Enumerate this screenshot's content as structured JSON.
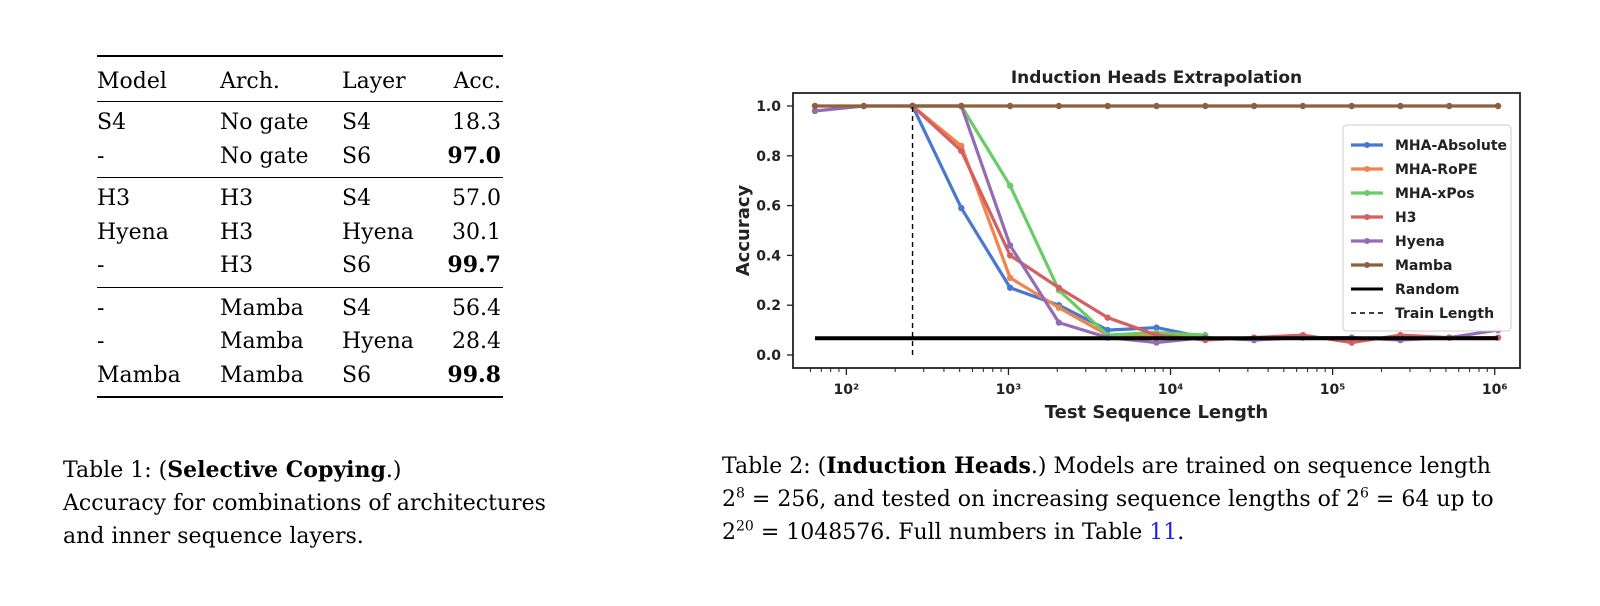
{
  "table1": {
    "headers": [
      "Model",
      "Arch.",
      "Layer",
      "Acc."
    ],
    "groups": [
      [
        {
          "model": "S4",
          "arch": "No gate",
          "layer": "S4",
          "acc": "18.3",
          "bold": false
        },
        {
          "model": "-",
          "arch": "No gate",
          "layer": "S6",
          "acc": "97.0",
          "bold": true
        }
      ],
      [
        {
          "model": "H3",
          "arch": "H3",
          "layer": "S4",
          "acc": "57.0",
          "bold": false
        },
        {
          "model": "Hyena",
          "arch": "H3",
          "layer": "Hyena",
          "acc": "30.1",
          "bold": false
        },
        {
          "model": "-",
          "arch": "H3",
          "layer": "S6",
          "acc": "99.7",
          "bold": true
        }
      ],
      [
        {
          "model": "-",
          "arch": "Mamba",
          "layer": "S4",
          "acc": "56.4",
          "bold": false
        },
        {
          "model": "-",
          "arch": "Mamba",
          "layer": "Hyena",
          "acc": "28.4",
          "bold": false
        },
        {
          "model": "Mamba",
          "arch": "Mamba",
          "layer": "S6",
          "acc": "99.8",
          "bold": true
        }
      ]
    ],
    "caption": {
      "label": "Table 1: (",
      "bold": "Selective Copying",
      "after": ".)",
      "line2": "Accuracy for combinations of architectures",
      "line3": "and inner sequence layers."
    }
  },
  "chart_data": {
    "type": "line",
    "title": "Induction Heads Extrapolation",
    "xlabel": "Test Sequence Length",
    "ylabel": "Accuracy",
    "xscale": "log2",
    "xlim": [
      64,
      1048576
    ],
    "ylim": [
      0,
      1.0
    ],
    "x_tick_labels": [
      "10²",
      "10³",
      "10⁴",
      "10⁵",
      "10⁶"
    ],
    "x_tick_values": [
      100,
      1000,
      10000,
      100000,
      1000000
    ],
    "y_tick_labels": [
      "0.0",
      "0.2",
      "0.4",
      "0.6",
      "0.8",
      "1.0"
    ],
    "y_tick_values": [
      0,
      0.2,
      0.4,
      0.6,
      0.8,
      1.0
    ],
    "grid": false,
    "legend_position": "right",
    "series": [
      {
        "name": "MHA-Absolute",
        "color": "#4878d0",
        "x": [
          256,
          512,
          1024,
          2048,
          4096,
          8192,
          16384
        ],
        "y": [
          1.0,
          0.59,
          0.27,
          0.2,
          0.1,
          0.11,
          0.07
        ]
      },
      {
        "name": "MHA-RoPE",
        "color": "#ee854a",
        "x": [
          256,
          512,
          1024,
          2048,
          4096,
          8192,
          16384
        ],
        "y": [
          1.0,
          0.84,
          0.31,
          0.19,
          0.08,
          0.08,
          0.07
        ]
      },
      {
        "name": "MHA-xPos",
        "color": "#6acc64",
        "x": [
          256,
          512,
          1024,
          2048,
          4096,
          8192,
          16384
        ],
        "y": [
          1.0,
          1.0,
          0.68,
          0.26,
          0.08,
          0.09,
          0.08
        ]
      },
      {
        "name": "H3",
        "color": "#d65f5f",
        "x": [
          256,
          512,
          1024,
          2048,
          4096,
          8192,
          16384,
          32768,
          65536,
          131072,
          262144,
          524288,
          1048576
        ],
        "y": [
          1.0,
          0.82,
          0.4,
          0.27,
          0.15,
          0.08,
          0.06,
          0.07,
          0.08,
          0.05,
          0.08,
          0.07,
          0.07
        ]
      },
      {
        "name": "Hyena",
        "color": "#956cb4",
        "x": [
          64,
          128,
          256,
          512,
          1024,
          2048,
          4096,
          8192,
          16384,
          32768,
          65536,
          131072,
          262144,
          524288,
          1048576
        ],
        "y": [
          0.98,
          1.0,
          1.0,
          1.0,
          0.44,
          0.13,
          0.07,
          0.05,
          0.07,
          0.06,
          0.07,
          0.07,
          0.06,
          0.07,
          0.1
        ]
      },
      {
        "name": "Mamba",
        "color": "#8c613c",
        "x": [
          64,
          128,
          256,
          512,
          1024,
          2048,
          4096,
          8192,
          16384,
          32768,
          65536,
          131072,
          262144,
          524288,
          1048576
        ],
        "y": [
          1.0,
          1.0,
          1.0,
          1.0,
          1.0,
          1.0,
          1.0,
          1.0,
          1.0,
          1.0,
          1.0,
          1.0,
          1.0,
          1.0,
          1.0
        ]
      },
      {
        "name": "Random",
        "color": "#000000",
        "style": "solid-thick",
        "x": [
          64,
          1048576
        ],
        "y": [
          0.0675,
          0.0675
        ]
      },
      {
        "name": "Train Length",
        "color": "#000000",
        "style": "dashed-vertical",
        "x": [
          256,
          256
        ],
        "y": [
          0,
          1.0
        ]
      }
    ]
  },
  "table2": {
    "caption": {
      "label": "Table 2: (",
      "bold": "Induction Heads",
      "p1": ".)  Models are trained on sequence length",
      "l2a": "2",
      "l2a_sup": "8",
      "l2b": " = 256, and tested on increasing sequence lengths of 2",
      "l2b_sup": "6",
      "l2c": " = 64 up to",
      "l3a": "2",
      "l3a_sup": "20",
      "l3b": " = 1048576. Full numbers in Table ",
      "link": "11",
      "l3c": "."
    }
  }
}
